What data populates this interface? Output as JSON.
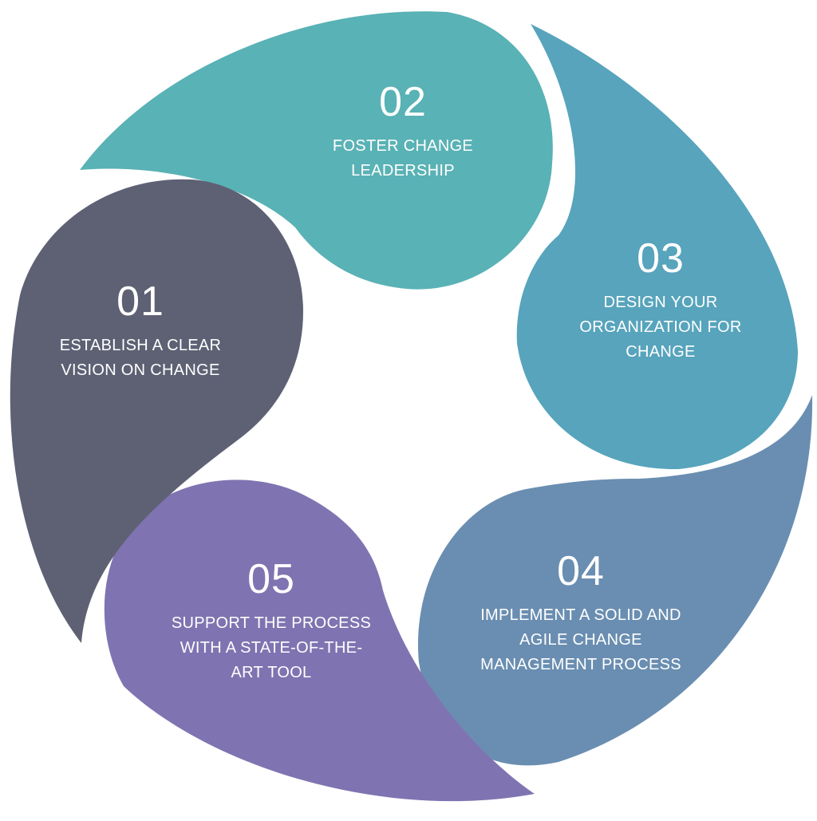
{
  "colors": {
    "step_01": "#5e6174",
    "step_02": "#59b2b5",
    "step_03": "#57a4bc",
    "step_04": "#6a8eb1",
    "step_05": "#7f74b1",
    "text": "#ffffff"
  },
  "steps": [
    {
      "number": "01",
      "lines": [
        "ESTABLISH A CLEAR",
        "VISION ON CHANGE"
      ]
    },
    {
      "number": "02",
      "lines": [
        "FOSTER CHANGE",
        "LEADERSHIP"
      ]
    },
    {
      "number": "03",
      "lines": [
        "DESIGN YOUR",
        "ORGANIZATION FOR",
        "CHANGE"
      ]
    },
    {
      "number": "04",
      "lines": [
        "IMPLEMENT A SOLID AND",
        "AGILE CHANGE",
        "MANAGEMENT PROCESS"
      ]
    },
    {
      "number": "05",
      "lines": [
        "SUPPORT THE PROCESS",
        "WITH A STATE-OF-THE-",
        "ART TOOL"
      ]
    }
  ]
}
